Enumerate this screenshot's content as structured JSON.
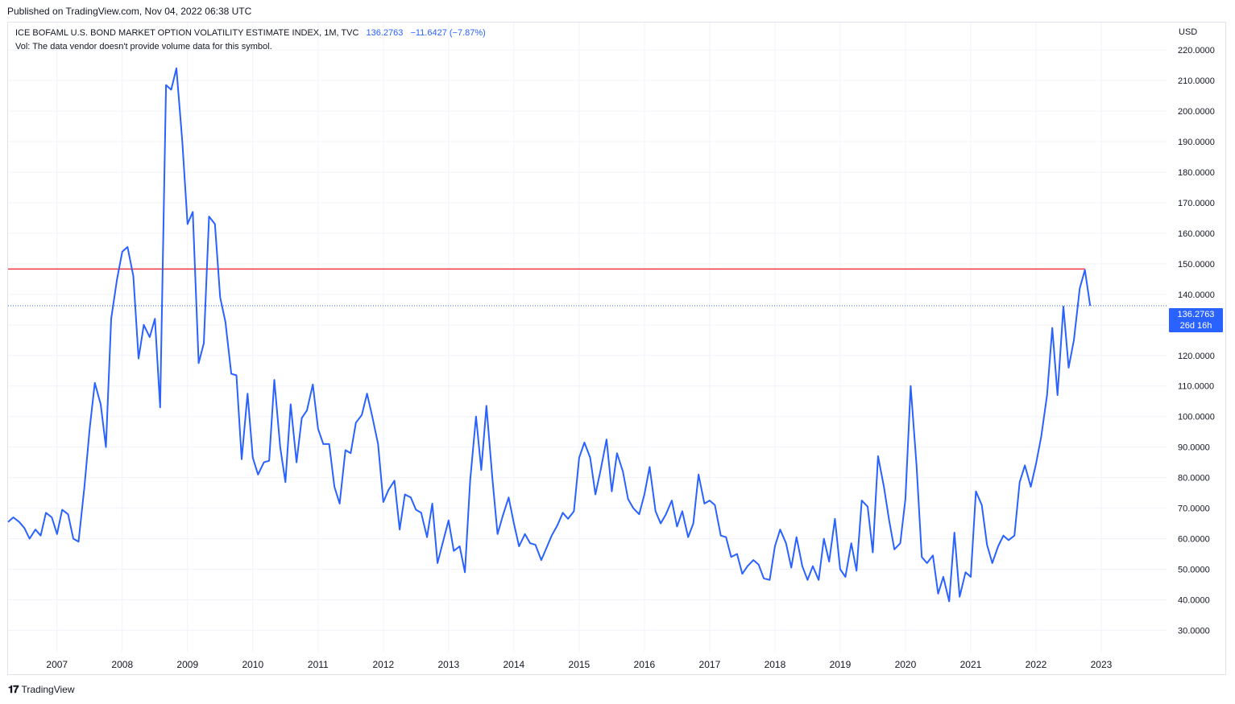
{
  "published": "Published on TradingView.com, Nov 04, 2022 06:38 UTC",
  "legend": {
    "symbol": "ICE BOFAML U.S. BOND MARKET OPTION VOLATILITY ESTIMATE INDEX, 1M, TVC",
    "last": "136.2763",
    "change": "−11.6427 (−7.87%)",
    "volume_note": "Vol: The data vendor doesn't provide volume data for this symbol."
  },
  "currency": "USD",
  "price_tag": {
    "value": "136.2763",
    "countdown": "26d 16h"
  },
  "footer": {
    "brand": "TradingView"
  },
  "colors": {
    "series": "#2962ff",
    "hline": "#f23645",
    "grid": "#f0f3fa",
    "axis_text": "#131722"
  },
  "chart_data": {
    "type": "line",
    "series": [
      {
        "values": [
          [
            2006.25,
            65.5
          ],
          [
            2006.33,
            67
          ],
          [
            2006.42,
            65.5
          ],
          [
            2006.5,
            63.5
          ],
          [
            2006.58,
            60
          ],
          [
            2006.67,
            63
          ],
          [
            2006.75,
            61
          ],
          [
            2006.83,
            68.5
          ],
          [
            2006.92,
            67
          ],
          [
            2007.0,
            61.5
          ],
          [
            2007.08,
            69.5
          ],
          [
            2007.17,
            68
          ],
          [
            2007.25,
            60
          ],
          [
            2007.33,
            59
          ],
          [
            2007.42,
            77
          ],
          [
            2007.5,
            96
          ],
          [
            2007.58,
            111
          ],
          [
            2007.67,
            104
          ],
          [
            2007.75,
            90
          ],
          [
            2007.83,
            132
          ],
          [
            2007.92,
            145
          ],
          [
            2008.0,
            154
          ],
          [
            2008.08,
            155.5
          ],
          [
            2008.17,
            146
          ],
          [
            2008.25,
            119
          ],
          [
            2008.33,
            130
          ],
          [
            2008.42,
            126
          ],
          [
            2008.5,
            132
          ],
          [
            2008.58,
            103
          ],
          [
            2008.67,
            208.5
          ],
          [
            2008.75,
            207
          ],
          [
            2008.83,
            214
          ],
          [
            2008.92,
            190
          ],
          [
            2009.0,
            163
          ],
          [
            2009.08,
            167
          ],
          [
            2009.17,
            117.5
          ],
          [
            2009.25,
            124
          ],
          [
            2009.33,
            165.5
          ],
          [
            2009.42,
            163
          ],
          [
            2009.5,
            139
          ],
          [
            2009.58,
            131
          ],
          [
            2009.67,
            114
          ],
          [
            2009.75,
            113.5
          ],
          [
            2009.83,
            86
          ],
          [
            2009.92,
            107.5
          ],
          [
            2010.0,
            86.5
          ],
          [
            2010.08,
            81
          ],
          [
            2010.17,
            85
          ],
          [
            2010.25,
            85.5
          ],
          [
            2010.33,
            112
          ],
          [
            2010.42,
            90
          ],
          [
            2010.5,
            78.5
          ],
          [
            2010.58,
            104
          ],
          [
            2010.67,
            85
          ],
          [
            2010.75,
            99.5
          ],
          [
            2010.83,
            102
          ],
          [
            2010.92,
            110.5
          ],
          [
            2011.0,
            96
          ],
          [
            2011.08,
            91
          ],
          [
            2011.17,
            91
          ],
          [
            2011.25,
            77
          ],
          [
            2011.33,
            71.5
          ],
          [
            2011.42,
            89
          ],
          [
            2011.5,
            88
          ],
          [
            2011.58,
            98
          ],
          [
            2011.67,
            100.5
          ],
          [
            2011.75,
            107.5
          ],
          [
            2011.83,
            100
          ],
          [
            2011.92,
            91
          ],
          [
            2012.0,
            72
          ],
          [
            2012.08,
            76
          ],
          [
            2012.17,
            79
          ],
          [
            2012.25,
            63
          ],
          [
            2012.33,
            74.5
          ],
          [
            2012.42,
            73.5
          ],
          [
            2012.5,
            69.5
          ],
          [
            2012.58,
            68.5
          ],
          [
            2012.67,
            60.5
          ],
          [
            2012.75,
            71.5
          ],
          [
            2012.83,
            52
          ],
          [
            2012.92,
            59.5
          ],
          [
            2013.0,
            66
          ],
          [
            2013.08,
            56
          ],
          [
            2013.17,
            57.5
          ],
          [
            2013.25,
            49
          ],
          [
            2013.33,
            79
          ],
          [
            2013.42,
            100
          ],
          [
            2013.5,
            82.5
          ],
          [
            2013.58,
            103.5
          ],
          [
            2013.67,
            80
          ],
          [
            2013.75,
            61.5
          ],
          [
            2013.83,
            67.5
          ],
          [
            2013.92,
            73.5
          ],
          [
            2014.0,
            65
          ],
          [
            2014.08,
            57.5
          ],
          [
            2014.17,
            61.5
          ],
          [
            2014.25,
            58.5
          ],
          [
            2014.33,
            58
          ],
          [
            2014.42,
            53
          ],
          [
            2014.5,
            57
          ],
          [
            2014.58,
            61
          ],
          [
            2014.67,
            64.5
          ],
          [
            2014.75,
            68.5
          ],
          [
            2014.83,
            66.5
          ],
          [
            2014.92,
            69
          ],
          [
            2015.0,
            86.5
          ],
          [
            2015.08,
            91.5
          ],
          [
            2015.17,
            86.5
          ],
          [
            2015.25,
            74.5
          ],
          [
            2015.33,
            82.5
          ],
          [
            2015.42,
            92.5
          ],
          [
            2015.5,
            75.5
          ],
          [
            2015.58,
            88
          ],
          [
            2015.67,
            82
          ],
          [
            2015.75,
            73
          ],
          [
            2015.83,
            70
          ],
          [
            2015.92,
            68
          ],
          [
            2016.0,
            74.5
          ],
          [
            2016.08,
            83.5
          ],
          [
            2016.17,
            69
          ],
          [
            2016.25,
            65
          ],
          [
            2016.33,
            68
          ],
          [
            2016.42,
            72.5
          ],
          [
            2016.5,
            64
          ],
          [
            2016.58,
            69
          ],
          [
            2016.67,
            60.5
          ],
          [
            2016.75,
            65
          ],
          [
            2016.83,
            81
          ],
          [
            2016.92,
            71.5
          ],
          [
            2017.0,
            72.5
          ],
          [
            2017.08,
            71
          ],
          [
            2017.17,
            61
          ],
          [
            2017.25,
            60.5
          ],
          [
            2017.33,
            54
          ],
          [
            2017.42,
            55
          ],
          [
            2017.5,
            48.5
          ],
          [
            2017.58,
            51
          ],
          [
            2017.67,
            53
          ],
          [
            2017.75,
            51.5
          ],
          [
            2017.83,
            47
          ],
          [
            2017.92,
            46.5
          ],
          [
            2018.0,
            57.5
          ],
          [
            2018.08,
            63
          ],
          [
            2018.17,
            58.5
          ],
          [
            2018.25,
            50.5
          ],
          [
            2018.33,
            60.5
          ],
          [
            2018.42,
            51
          ],
          [
            2018.5,
            46.5
          ],
          [
            2018.58,
            51
          ],
          [
            2018.67,
            46.5
          ],
          [
            2018.75,
            60
          ],
          [
            2018.83,
            52.5
          ],
          [
            2018.92,
            66.5
          ],
          [
            2019.0,
            50
          ],
          [
            2019.08,
            47.5
          ],
          [
            2019.17,
            58.5
          ],
          [
            2019.25,
            49.5
          ],
          [
            2019.33,
            72.5
          ],
          [
            2019.42,
            70.5
          ],
          [
            2019.5,
            55.5
          ],
          [
            2019.58,
            87
          ],
          [
            2019.67,
            77
          ],
          [
            2019.75,
            66
          ],
          [
            2019.83,
            56.5
          ],
          [
            2019.92,
            58.5
          ],
          [
            2020.0,
            73
          ],
          [
            2020.08,
            110
          ],
          [
            2020.17,
            84
          ],
          [
            2020.25,
            54
          ],
          [
            2020.33,
            52
          ],
          [
            2020.42,
            54.5
          ],
          [
            2020.5,
            42
          ],
          [
            2020.58,
            47.5
          ],
          [
            2020.67,
            39.5
          ],
          [
            2020.75,
            62
          ],
          [
            2020.83,
            41
          ],
          [
            2020.92,
            49
          ],
          [
            2021.0,
            47.5
          ],
          [
            2021.08,
            75.5
          ],
          [
            2021.17,
            71
          ],
          [
            2021.25,
            58
          ],
          [
            2021.33,
            52
          ],
          [
            2021.42,
            57.5
          ],
          [
            2021.5,
            61
          ],
          [
            2021.58,
            59.5
          ],
          [
            2021.67,
            61
          ],
          [
            2021.75,
            78.5
          ],
          [
            2021.83,
            84
          ],
          [
            2021.92,
            77
          ],
          [
            2022.0,
            84.5
          ],
          [
            2022.08,
            93.5
          ],
          [
            2022.17,
            107
          ],
          [
            2022.25,
            129
          ],
          [
            2022.33,
            107
          ],
          [
            2022.42,
            136
          ],
          [
            2022.5,
            116
          ],
          [
            2022.58,
            125
          ],
          [
            2022.67,
            142
          ],
          [
            2022.75,
            148
          ],
          [
            2022.83,
            136.2763
          ]
        ]
      }
    ],
    "hline": 148.3,
    "x_ticks": [
      "2007",
      "2008",
      "2009",
      "2010",
      "2011",
      "2012",
      "2013",
      "2014",
      "2015",
      "2016",
      "2017",
      "2018",
      "2019",
      "2020",
      "2021",
      "2022",
      "2023"
    ],
    "y_ticks": [
      "30.0000",
      "40.0000",
      "50.0000",
      "60.0000",
      "70.0000",
      "80.0000",
      "90.0000",
      "100.0000",
      "110.0000",
      "120.0000",
      "130.0000",
      "140.0000",
      "150.0000",
      "160.0000",
      "170.0000",
      "180.0000",
      "190.0000",
      "200.0000",
      "210.0000",
      "220.0000"
    ],
    "xlim": [
      2006.25,
      2024.0
    ],
    "ylim": [
      23,
      229
    ],
    "grid": true,
    "legend_position": "top-left"
  }
}
